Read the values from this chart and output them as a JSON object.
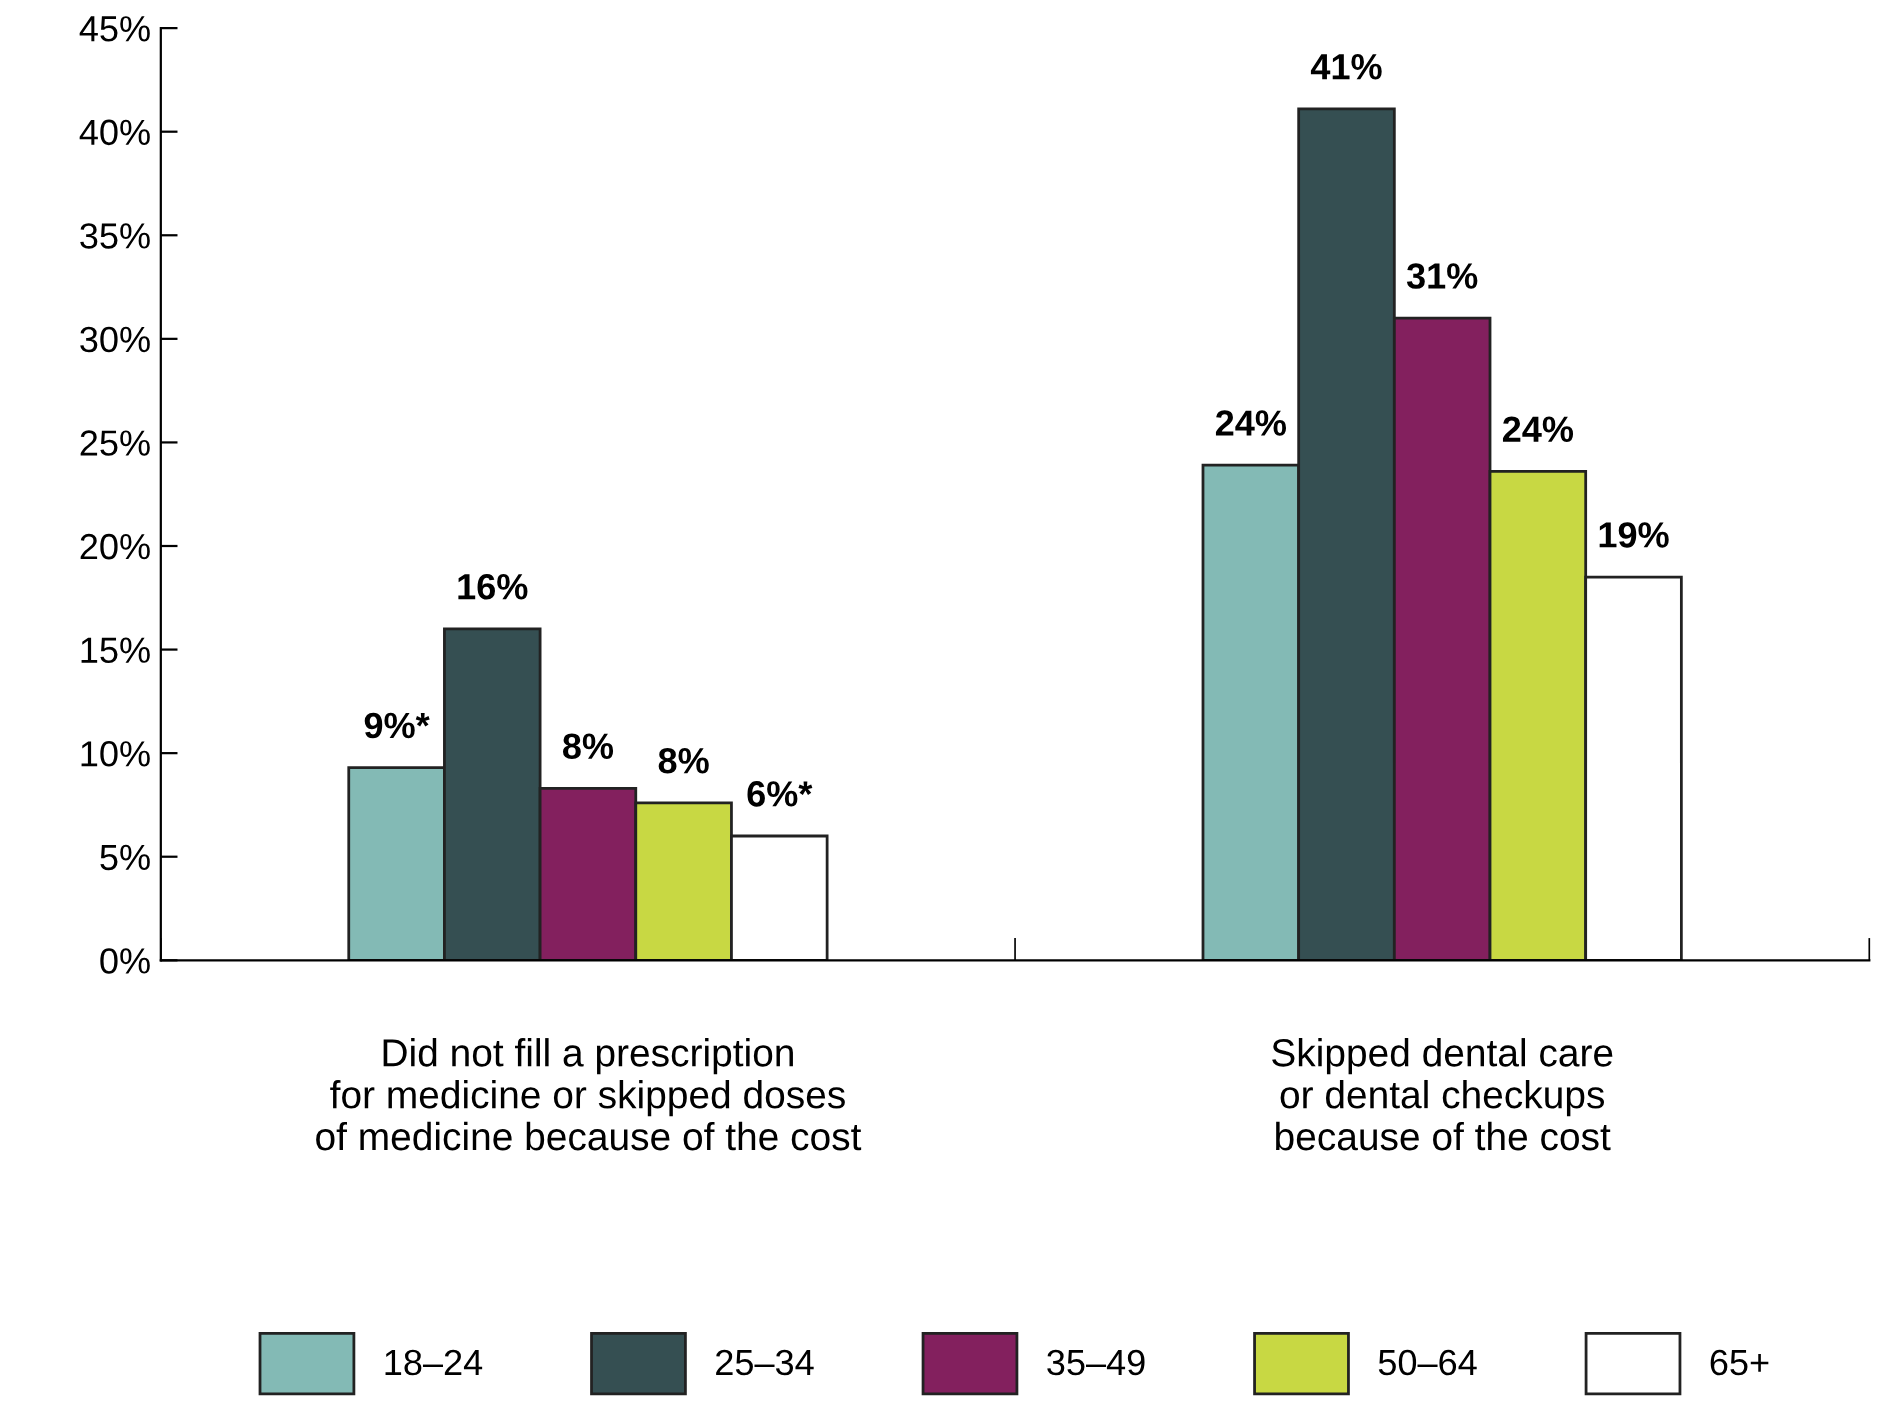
{
  "chart_data": {
    "type": "bar",
    "categories": [
      "Did not fill a prescription\nfor medicine or skipped doses\nof medicine because of the cost",
      "Skipped dental care\nor dental checkups\nbecause of the cost"
    ],
    "series": [
      {
        "name": "18–24",
        "color": "#83bab5",
        "values": [
          9.3,
          23.9
        ],
        "value_labels": [
          "9%*",
          "24%"
        ]
      },
      {
        "name": "25–34",
        "color": "#354f52",
        "values": [
          16.0,
          41.1
        ],
        "value_labels": [
          "16%",
          "41%"
        ]
      },
      {
        "name": "35–49",
        "color": "#83205e",
        "values": [
          8.3,
          31.0
        ],
        "value_labels": [
          "8%",
          "31%"
        ]
      },
      {
        "name": "50–64",
        "color": "#c8d843",
        "values": [
          7.6,
          23.6
        ],
        "value_labels": [
          "8%",
          "24%"
        ]
      },
      {
        "name": "65+",
        "color": "#ffffff",
        "values": [
          6.0,
          18.5
        ],
        "value_labels": [
          "6%*",
          "19%"
        ]
      }
    ],
    "ylim": [
      0,
      45
    ],
    "yticks": [
      {
        "value": 0,
        "label": "0%"
      },
      {
        "value": 5,
        "label": "5%"
      },
      {
        "value": 10,
        "label": "10%"
      },
      {
        "value": 15,
        "label": "15%"
      },
      {
        "value": 20,
        "label": "20%"
      },
      {
        "value": 25,
        "label": "25%"
      },
      {
        "value": 30,
        "label": "30%"
      },
      {
        "value": 35,
        "label": "35%"
      },
      {
        "value": 40,
        "label": "40%"
      },
      {
        "value": 45,
        "label": "45%"
      }
    ],
    "grid": false,
    "legend": "bottom"
  }
}
